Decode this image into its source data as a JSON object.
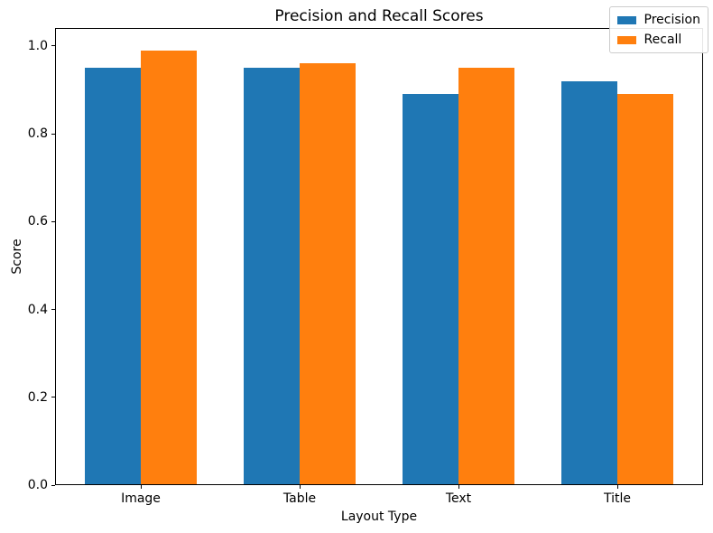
{
  "chart_data": {
    "type": "bar",
    "title": "Precision and Recall Scores",
    "xlabel": "Layout Type",
    "ylabel": "Score",
    "categories": [
      "Image",
      "Table",
      "Text",
      "Title"
    ],
    "series": [
      {
        "name": "Precision",
        "color": "#1f77b4",
        "values": [
          0.95,
          0.95,
          0.89,
          0.92
        ]
      },
      {
        "name": "Recall",
        "color": "#ff7f0e",
        "values": [
          0.99,
          0.96,
          0.95,
          0.89
        ]
      }
    ],
    "yticks": [
      "0.0",
      "0.2",
      "0.4",
      "0.6",
      "0.8",
      "1.0"
    ],
    "ylim": [
      0,
      1.041
    ],
    "xlim": [
      -0.54,
      3.54
    ],
    "bar_width": 0.35,
    "legend_position": "upper right",
    "grid": false,
    "background_color": "#ffffff",
    "spine_color": "#000000",
    "text_color": "#000000"
  }
}
